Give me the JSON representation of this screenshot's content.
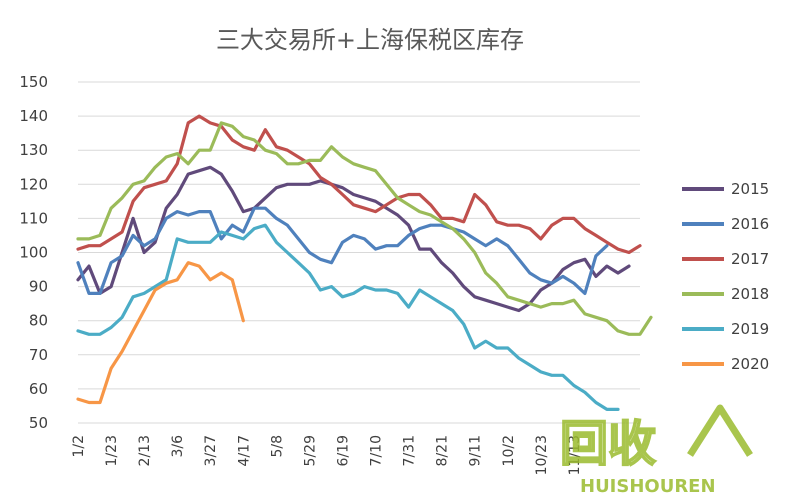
{
  "chart_data": {
    "type": "line",
    "title": "三大交易所+上海保税区库存",
    "xlabel": "",
    "ylabel": "",
    "ylim": [
      50,
      150
    ],
    "yticks": [
      50,
      60,
      70,
      80,
      90,
      100,
      110,
      120,
      130,
      140,
      150
    ],
    "x_tick_labels": [
      "1/2",
      "1/23",
      "2/13",
      "3/6",
      "3/27",
      "4/17",
      "5/8",
      "5/29",
      "6/19",
      "7/10",
      "7/31",
      "8/21",
      "9/11",
      "10/2",
      "10/23",
      "11/13"
    ],
    "grid": "horizontal",
    "legend_position": "right",
    "series": [
      {
        "name": "2015",
        "color": "#604A7B",
        "values": [
          92,
          96,
          88,
          90,
          100,
          110,
          100,
          103,
          113,
          117,
          123,
          124,
          125,
          123,
          118,
          112,
          113,
          116,
          119,
          120,
          120,
          120,
          121,
          120,
          119,
          117,
          116,
          115,
          113,
          111,
          108,
          101,
          101,
          97,
          94,
          90,
          87,
          86,
          85,
          84,
          83,
          85,
          89,
          91,
          95,
          97,
          98,
          93,
          96,
          94,
          96
        ]
      },
      {
        "name": "2016",
        "color": "#4F81BD",
        "values": [
          97,
          88,
          88,
          97,
          99,
          105,
          102,
          104,
          110,
          112,
          111,
          112,
          112,
          104,
          108,
          106,
          113,
          113,
          110,
          108,
          104,
          100,
          98,
          97,
          103,
          105,
          104,
          101,
          102,
          102,
          105,
          107,
          108,
          108,
          107,
          106,
          104,
          102,
          104,
          102,
          98,
          94,
          92,
          91,
          93,
          91,
          88,
          99,
          102
        ]
      },
      {
        "name": "2017",
        "color": "#C0504D",
        "values": [
          101,
          102,
          102,
          104,
          106,
          115,
          119,
          120,
          121,
          126,
          138,
          140,
          138,
          137,
          133,
          131,
          130,
          136,
          131,
          130,
          128,
          126,
          122,
          120,
          117,
          114,
          113,
          112,
          114,
          116,
          117,
          117,
          114,
          110,
          110,
          109,
          117,
          114,
          109,
          108,
          108,
          107,
          104,
          108,
          110,
          110,
          107,
          105,
          103,
          101,
          100,
          102
        ]
      },
      {
        "name": "2018",
        "color": "#9BBB59",
        "values": [
          104,
          104,
          105,
          113,
          116,
          120,
          121,
          125,
          128,
          129,
          126,
          130,
          130,
          138,
          137,
          134,
          133,
          130,
          129,
          126,
          126,
          127,
          127,
          131,
          128,
          126,
          125,
          124,
          120,
          116,
          114,
          112,
          111,
          109,
          107,
          104,
          100,
          94,
          91,
          87,
          86,
          85,
          84,
          85,
          85,
          86,
          82,
          81,
          80,
          77,
          76,
          76,
          81
        ]
      },
      {
        "name": "2019",
        "color": "#4BACC6",
        "values": [
          77,
          76,
          76,
          78,
          81,
          87,
          88,
          90,
          92,
          104,
          103,
          103,
          103,
          106,
          105,
          104,
          107,
          108,
          103,
          100,
          97,
          94,
          89,
          90,
          87,
          88,
          90,
          89,
          89,
          88,
          84,
          89,
          87,
          85,
          83,
          79,
          72,
          74,
          72,
          72,
          69,
          67,
          65,
          64,
          64,
          61,
          59,
          56,
          54,
          54
        ]
      },
      {
        "name": "2020",
        "color": "#F79646",
        "values": [
          57,
          56,
          56,
          66,
          71,
          77,
          83,
          89,
          91,
          92,
          97,
          96,
          92,
          94,
          92,
          80
        ]
      }
    ]
  },
  "watermark": {
    "logo_text": "回收",
    "sub_text": "HUISHOUREN"
  }
}
